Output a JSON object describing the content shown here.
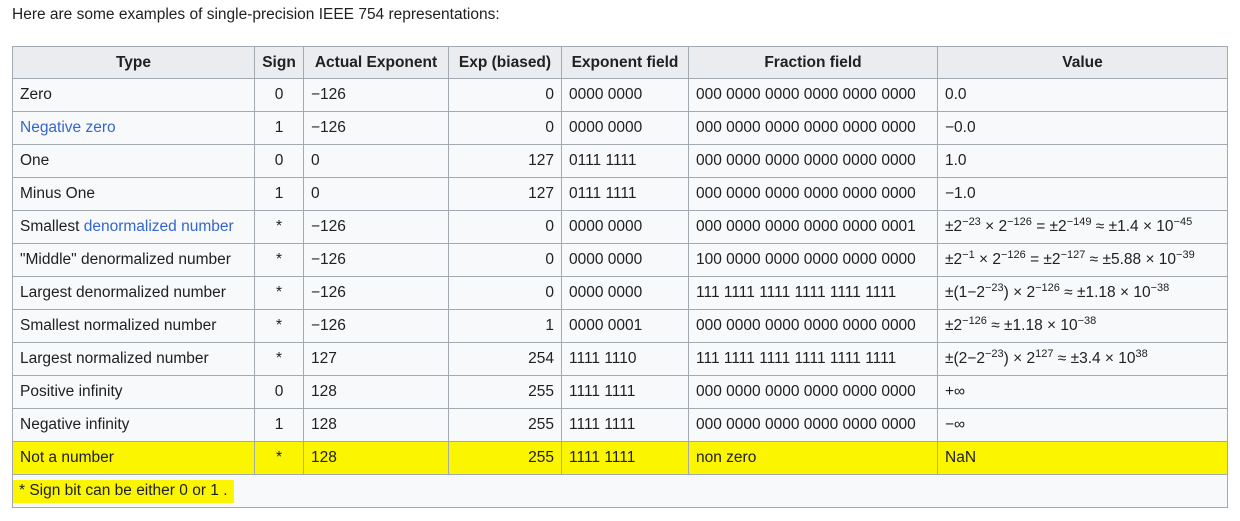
{
  "intro": "Here are some examples of single-precision IEEE 754 representations:",
  "headers": [
    "Type",
    "Sign",
    "Actual Exponent",
    "Exp (biased)",
    "Exponent field",
    "Fraction field",
    "Value"
  ],
  "rows": [
    {
      "type": [
        {
          "t": "Zero"
        }
      ],
      "sign": "0",
      "actual": "−126",
      "biased": "0",
      "expfield": "0000 0000",
      "fraction": "000 0000 0000 0000 0000 0000",
      "value": [
        {
          "t": "0.0"
        }
      ]
    },
    {
      "type": [
        {
          "t": "Negative zero",
          "link": true
        }
      ],
      "sign": "1",
      "actual": "−126",
      "biased": "0",
      "expfield": "0000 0000",
      "fraction": "000 0000 0000 0000 0000 0000",
      "value": [
        {
          "t": "−0.0"
        }
      ]
    },
    {
      "type": [
        {
          "t": "One"
        }
      ],
      "sign": "0",
      "actual": "0",
      "biased": "127",
      "expfield": "0111 1111",
      "fraction": "000 0000 0000 0000 0000 0000",
      "value": [
        {
          "t": "1.0"
        }
      ]
    },
    {
      "type": [
        {
          "t": "Minus One"
        }
      ],
      "sign": "1",
      "actual": "0",
      "biased": "127",
      "expfield": "0111 1111",
      "fraction": "000 0000 0000 0000 0000 0000",
      "value": [
        {
          "t": "−1.0"
        }
      ]
    },
    {
      "type": [
        {
          "t": "Smallest "
        },
        {
          "t": "denormalized number",
          "link": true
        }
      ],
      "sign": "*",
      "actual": "−126",
      "biased": "0",
      "expfield": "0000 0000",
      "fraction": "000 0000 0000 0000 0000 0001",
      "value": [
        {
          "t": "±2"
        },
        {
          "t": "−23",
          "sup": true
        },
        {
          "t": " × 2"
        },
        {
          "t": "−126",
          "sup": true
        },
        {
          "t": " = ±2"
        },
        {
          "t": "−149",
          "sup": true
        },
        {
          "t": " ≈ ±1.4 × 10"
        },
        {
          "t": "−45",
          "sup": true
        }
      ]
    },
    {
      "type": [
        {
          "t": "\"Middle\" denormalized number"
        }
      ],
      "sign": "*",
      "actual": "−126",
      "biased": "0",
      "expfield": "0000 0000",
      "fraction": "100 0000 0000 0000 0000 0000",
      "value": [
        {
          "t": "±2"
        },
        {
          "t": "−1",
          "sup": true
        },
        {
          "t": " × 2"
        },
        {
          "t": "−126",
          "sup": true
        },
        {
          "t": " = ±2"
        },
        {
          "t": "−127",
          "sup": true
        },
        {
          "t": " ≈ ±5.88 × 10"
        },
        {
          "t": "−39",
          "sup": true
        }
      ]
    },
    {
      "type": [
        {
          "t": "Largest denormalized number"
        }
      ],
      "sign": "*",
      "actual": "−126",
      "biased": "0",
      "expfield": "0000 0000",
      "fraction": "111 1111 1111 1111 1111 1111",
      "value": [
        {
          "t": "±(1−2"
        },
        {
          "t": "−23",
          "sup": true
        },
        {
          "t": ") × 2"
        },
        {
          "t": "−126",
          "sup": true
        },
        {
          "t": " ≈ ±1.18 × 10"
        },
        {
          "t": "−38",
          "sup": true
        }
      ]
    },
    {
      "type": [
        {
          "t": "Smallest normalized number"
        }
      ],
      "sign": "*",
      "actual": "−126",
      "biased": "1",
      "expfield": "0000 0001",
      "fraction": "000 0000 0000 0000 0000 0000",
      "value": [
        {
          "t": "±2"
        },
        {
          "t": "−126",
          "sup": true
        },
        {
          "t": " ≈ ±1.18 × 10"
        },
        {
          "t": "−38",
          "sup": true
        }
      ]
    },
    {
      "type": [
        {
          "t": "Largest normalized number"
        }
      ],
      "sign": "*",
      "actual": "127",
      "biased": "254",
      "expfield": "1111 1110",
      "fraction": "111 1111 1111 1111 1111 1111",
      "value": [
        {
          "t": "±(2−2"
        },
        {
          "t": "−23",
          "sup": true
        },
        {
          "t": ") × 2"
        },
        {
          "t": "127",
          "sup": true
        },
        {
          "t": " ≈ ±3.4 × 10"
        },
        {
          "t": "38",
          "sup": true
        }
      ]
    },
    {
      "type": [
        {
          "t": "Positive infinity"
        }
      ],
      "sign": "0",
      "actual": "128",
      "biased": "255",
      "expfield": "1111 1111",
      "fraction": "000 0000 0000 0000 0000 0000",
      "value": [
        {
          "t": "+∞"
        }
      ]
    },
    {
      "type": [
        {
          "t": "Negative infinity"
        }
      ],
      "sign": "1",
      "actual": "128",
      "biased": "255",
      "expfield": "1111 1111",
      "fraction": "000 0000 0000 0000 0000 0000",
      "value": [
        {
          "t": "−∞"
        }
      ]
    },
    {
      "type": [
        {
          "t": "Not a number"
        }
      ],
      "sign": "*",
      "actual": "128",
      "biased": "255",
      "expfield": "1111 1111",
      "fraction": "non zero",
      "value": [
        {
          "t": "NaN"
        }
      ],
      "highlight": true
    }
  ],
  "footnote": "* Sign bit can be either 0 or 1 .",
  "colors": {
    "highlight": "#fbf500",
    "link": "#3366cc",
    "header_bg": "#eaecf0",
    "cell_bg": "#f8f9fa",
    "border": "#a2a9b1"
  }
}
